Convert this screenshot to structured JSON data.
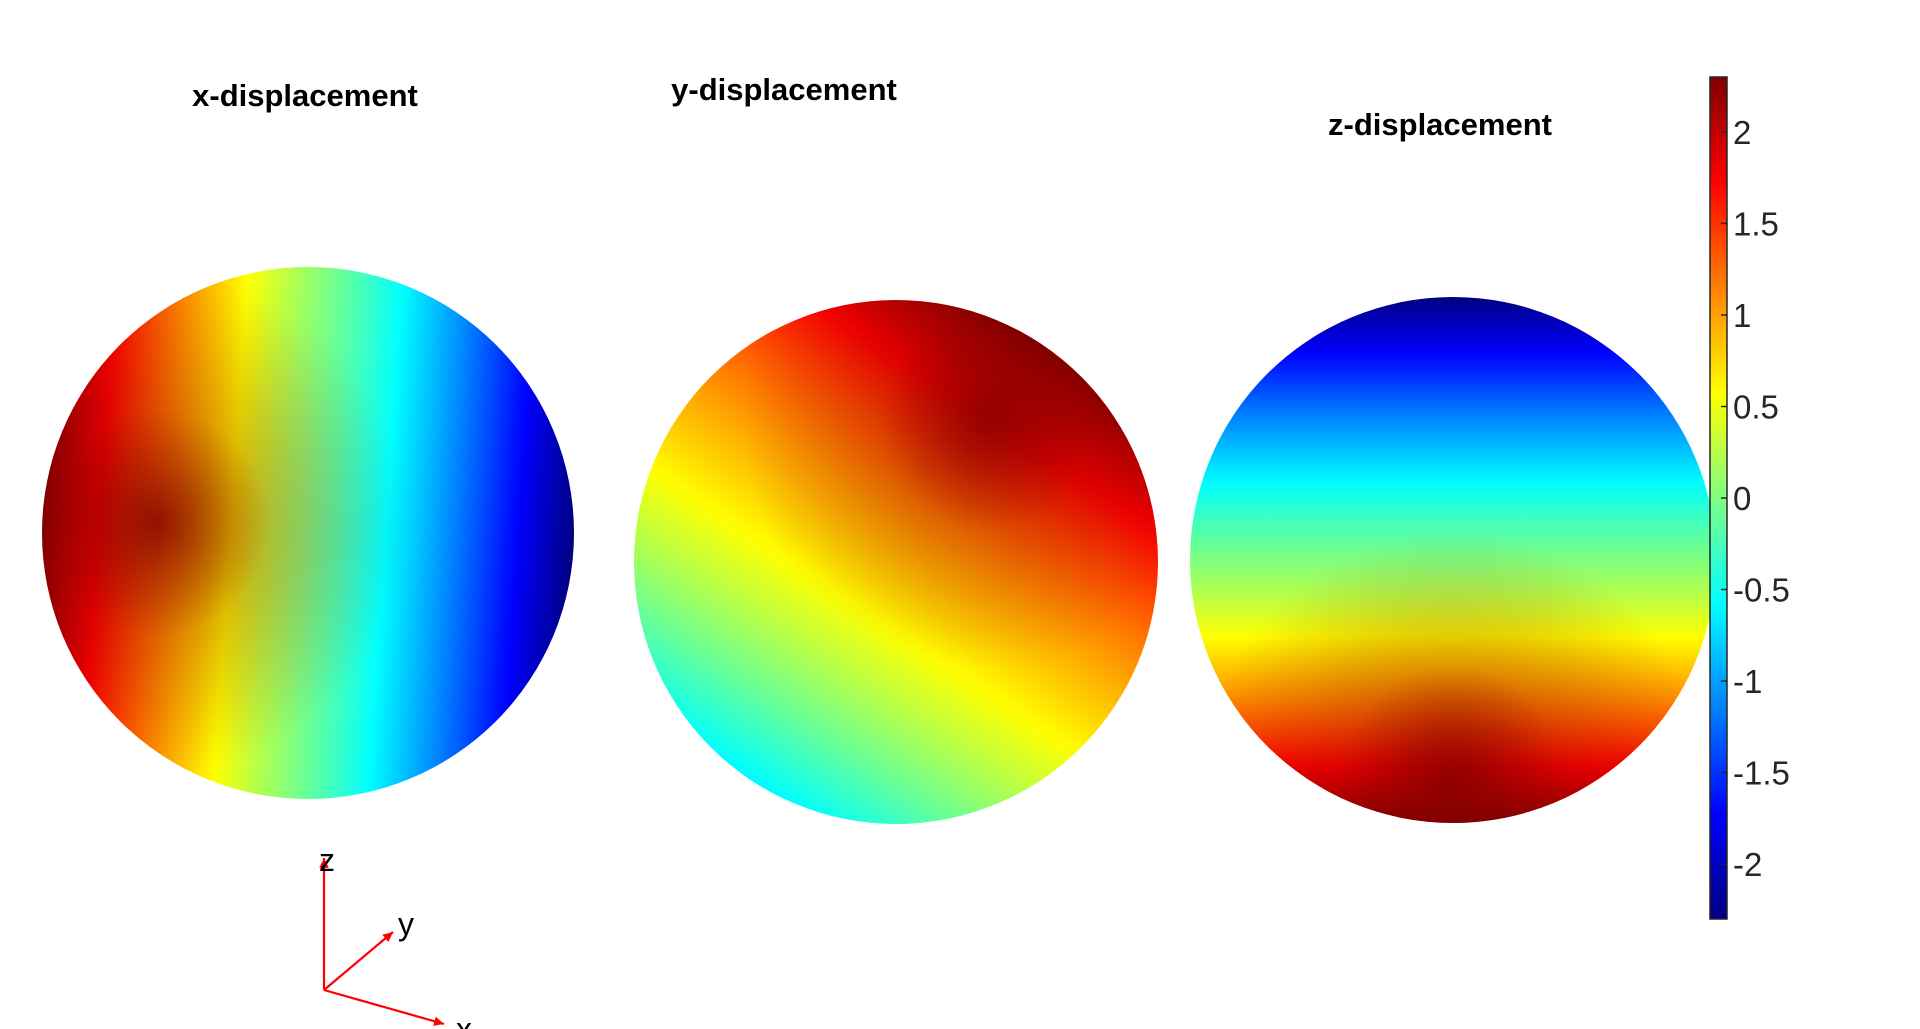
{
  "chart_data": {
    "type": "heatmap",
    "colormap": "jet",
    "colorbar": {
      "clim": [
        -2.3,
        2.3
      ],
      "ticks": [
        -2,
        -1.5,
        -1,
        -0.5,
        0,
        0.5,
        1,
        1.5,
        2
      ],
      "tick_labels": [
        "-2",
        "-1.5",
        "-1",
        "-0.5",
        "0",
        "0.5",
        "1",
        "1.5",
        "2"
      ],
      "placement": "right"
    },
    "panels": [
      {
        "title": "x-displacement",
        "field_direction": [
          -0.75,
          -0.05,
          0.06
        ],
        "min": -2.3,
        "max": 2.3
      },
      {
        "title": "y-displacement",
        "field_direction": [
          0.3,
          -0.45,
          -0.3
        ],
        "min": -0.6,
        "max": 2.3
      },
      {
        "title": "z-displacement",
        "field_direction": [
          0,
          0.45,
          -0.8
        ],
        "min": -2.3,
        "max": 2.3
      }
    ],
    "axes_triad": {
      "labels": [
        "z",
        "y",
        "x"
      ],
      "color": "#ff0000"
    }
  }
}
